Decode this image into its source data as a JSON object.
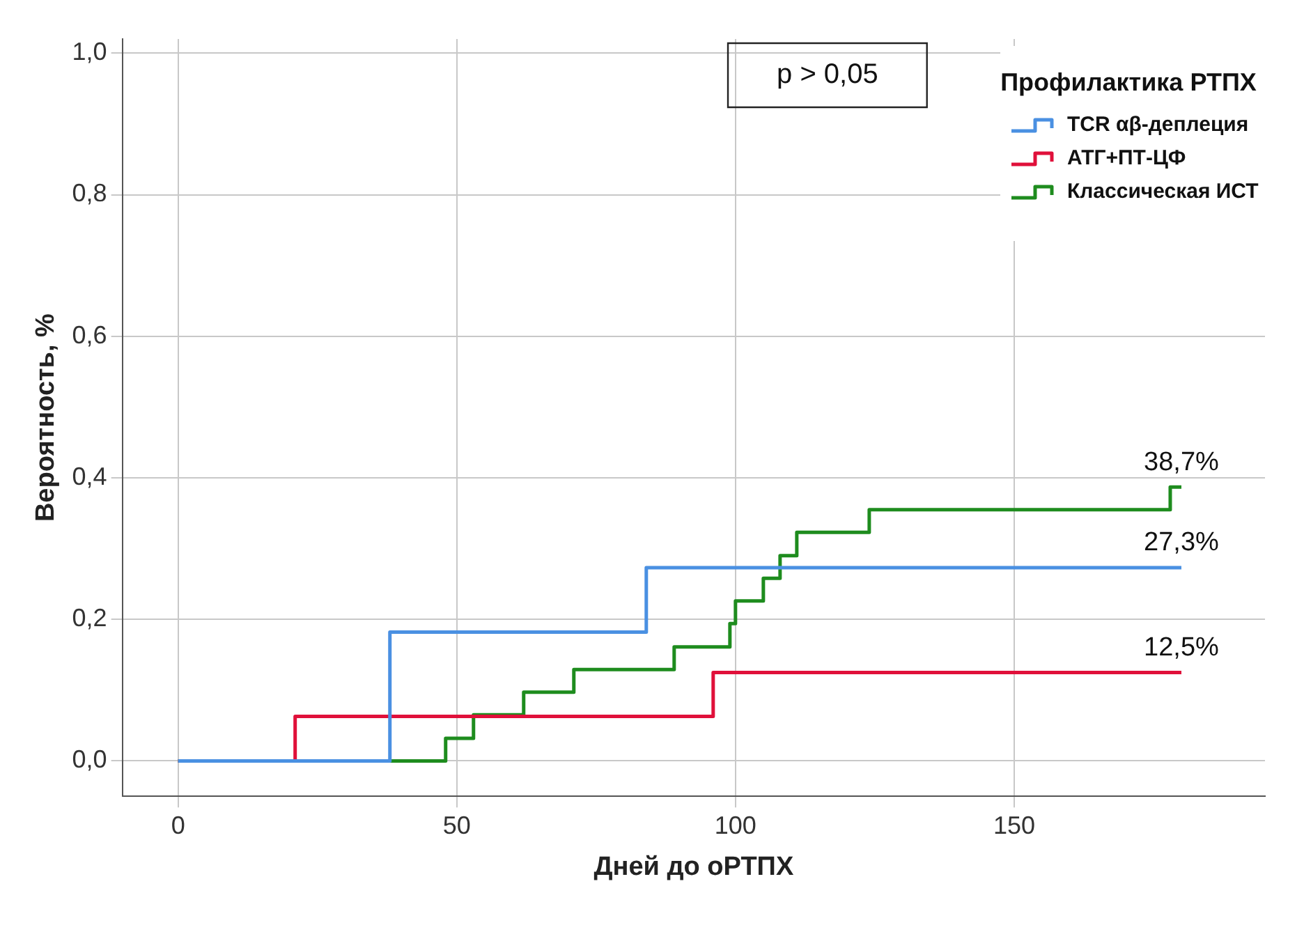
{
  "chart_data": {
    "type": "step",
    "xlabel": "Дней до оРТПХ",
    "ylabel": "Вероятность, %",
    "legend_title": "Профилактика РТПХ",
    "series": [
      {
        "name": "TCR αβ-деплеция",
        "color": "#4a90e2",
        "x": [
          0,
          38,
          84,
          180
        ],
        "values": [
          0,
          0.182,
          0.273,
          0.273
        ],
        "value_labels": [
          null,
          null,
          null,
          "27,3%"
        ]
      },
      {
        "name": "АТГ+ПТ-ЦФ",
        "color": "#e0103a",
        "x": [
          0,
          21,
          96,
          180
        ],
        "values": [
          0,
          0.063,
          0.125,
          0.125
        ],
        "value_labels": [
          null,
          null,
          null,
          "12,5%"
        ]
      },
      {
        "name": "Классическая ИСТ",
        "color": "#1e8c1e",
        "x": [
          0,
          48,
          53,
          62,
          71,
          89,
          99,
          100,
          105,
          108,
          111,
          124,
          178,
          180
        ],
        "values": [
          0,
          0.032,
          0.065,
          0.097,
          0.129,
          0.161,
          0.194,
          0.226,
          0.258,
          0.29,
          0.323,
          0.355,
          0.387,
          0.387
        ],
        "value_labels": [
          null,
          null,
          null,
          null,
          null,
          null,
          null,
          null,
          null,
          null,
          null,
          null,
          null,
          "38,7%"
        ]
      }
    ],
    "annotations": [
      "p > 0,05"
    ],
    "xlim": [
      -10,
      195
    ],
    "xticks": [
      0,
      50,
      100,
      150
    ],
    "ylim": [
      -0.05,
      1.02
    ],
    "yticks": [
      {
        "value": 0,
        "label": "0,0"
      },
      {
        "value": 0.2,
        "label": "0,2"
      },
      {
        "value": 0.4,
        "label": "0,4"
      },
      {
        "value": 0.6,
        "label": "0,6"
      },
      {
        "value": 0.8,
        "label": "0,8"
      },
      {
        "value": 1,
        "label": "1,0"
      }
    ],
    "grid": true,
    "legend": "top right",
    "line_style": "solid"
  }
}
